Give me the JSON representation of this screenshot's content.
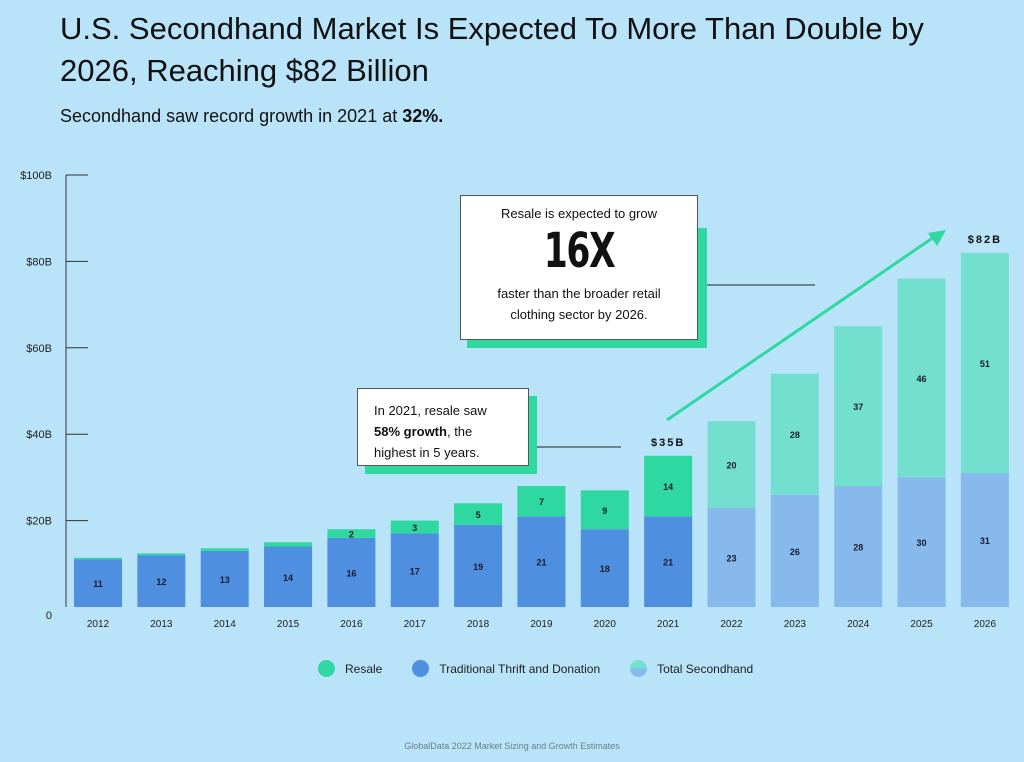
{
  "header": {
    "title": "U.S. Secondhand Market Is Expected To More Than Double by 2026, Reaching $82 Billion",
    "subtitle_prefix": "Secondhand saw record growth in 2021 at ",
    "subtitle_emphasis": "32%."
  },
  "callouts": {
    "growth": {
      "line1": "Resale is expected to grow",
      "big": "16X",
      "line2a": "faster than the broader retail",
      "line2b": "clothing sector by 2026."
    },
    "resale2021": {
      "prefix": "In 2021, resale saw",
      "emphasis": "58% growth",
      "after": ", the",
      "line3": "highest in 5 years."
    }
  },
  "legend": {
    "resale": "Resale",
    "thrift": "Traditional Thrift and Donation",
    "total": "Total Secondhand"
  },
  "source": "GlobalData 2022 Market Sizing and Growth Estimates",
  "colors": {
    "background": "#b8e3f8",
    "resale": "#2ed8a0",
    "thrift": "#4f8fe0",
    "projected_resale": "#73e0cf",
    "projected_thrift": "#87b9ec",
    "arrow": "#2ed8a0"
  },
  "chart_data": {
    "type": "bar",
    "stacked": true,
    "categories": [
      "2012",
      "2013",
      "2014",
      "2015",
      "2016",
      "2017",
      "2018",
      "2019",
      "2020",
      "2021",
      "2022",
      "2023",
      "2024",
      "2025",
      "2026"
    ],
    "series": [
      {
        "name": "Traditional Thrift and Donation",
        "values": [
          11,
          12,
          13,
          14,
          16,
          17,
          19,
          21,
          18,
          21,
          23,
          26,
          28,
          30,
          31
        ]
      },
      {
        "name": "Resale",
        "values": [
          0.4,
          0.4,
          0.6,
          1,
          2,
          3,
          5,
          7,
          9,
          14,
          20,
          28,
          37,
          46,
          51
        ]
      }
    ],
    "segment_labels": {
      "thrift": [
        "11",
        "12",
        "13",
        "14",
        "16",
        "17",
        "19",
        "21",
        "18",
        "21",
        "23",
        "26",
        "28",
        "30",
        "31"
      ],
      "resale": [
        "",
        "",
        "",
        "",
        "2",
        "3",
        "5",
        "7",
        "9",
        "14",
        "20",
        "28",
        "37",
        "46",
        "51"
      ]
    },
    "projected_from": "2022",
    "annotations": [
      {
        "category": "2021",
        "text": "$35B"
      },
      {
        "category": "2026",
        "text": "$82B"
      }
    ],
    "yticks": [
      {
        "value": 100,
        "label": "$100B"
      },
      {
        "value": 80,
        "label": "$80B"
      },
      {
        "value": 60,
        "label": "$60B"
      },
      {
        "value": 40,
        "label": "$40B"
      },
      {
        "value": 20,
        "label": "$20B"
      },
      {
        "value": 0,
        "label": "0"
      }
    ],
    "ylim": [
      0,
      100
    ],
    "xlabel": "",
    "ylabel": "",
    "grid": false,
    "legend_position": "bottom"
  }
}
